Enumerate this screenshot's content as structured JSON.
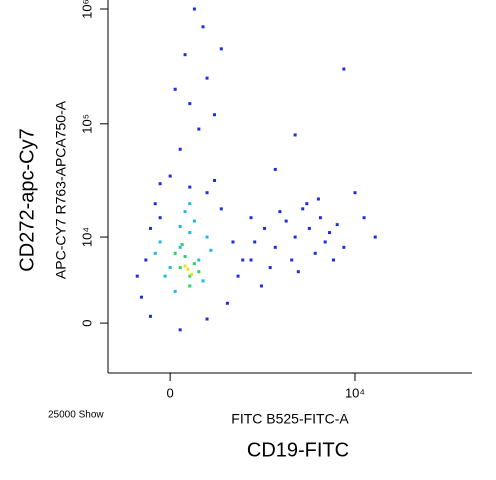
{
  "chart_data": {
    "type": "scatter",
    "sample_note": "25000 Show",
    "xlabel": "FITC B525-FITC-A",
    "ylabel": "APC-CY7 R763-APCA750-A",
    "xtitle": "CD19-FITC",
    "ytitle": "CD272-apc-Cy7",
    "xscale": "asinh",
    "xcofactor": 495,
    "yscale": "asinh",
    "ycofactor": 3680,
    "xlim": [
      -787,
      100000
    ],
    "ylim": [
      -3780,
      1000000
    ],
    "xticks": [
      0,
      {
        "value": 10000,
        "label": "10⁴"
      }
    ],
    "yticks": [
      0,
      {
        "value": 10000,
        "label": "10⁴"
      },
      {
        "value": 100000,
        "label": "10⁵"
      },
      {
        "value": 1000000,
        "label": "10⁶"
      }
    ],
    "series": [
      {
        "color": "#1c2ee0",
        "x": [
          -300,
          -250,
          -200,
          -150,
          -100,
          0,
          200,
          400,
          600,
          800,
          900,
          700,
          400,
          100,
          -200,
          -350,
          1200,
          1500,
          -100,
          500,
          100,
          300,
          200,
          400,
          150,
          350,
          250,
          500,
          50,
          600,
          1000,
          1300,
          1600,
          2000,
          2500,
          3000,
          3500,
          4000,
          4500,
          5000,
          5500,
          6000,
          7000,
          8000,
          1800,
          2800,
          3800,
          2200,
          4800,
          6500,
          1200,
          3200,
          10000,
          15000,
          3000,
          8000,
          12000,
          2000
        ],
        "y": [
          2000,
          6000,
          12000,
          20000,
          30000,
          35000,
          28000,
          25000,
          18000,
          9000,
          4000,
          1500,
          300,
          -500,
          500,
          4000,
          6000,
          3000,
          15000,
          32000,
          60000,
          90000,
          150000,
          250000,
          400000,
          700000,
          1000000,
          120000,
          200000,
          450000,
          6000,
          9000,
          12000,
          8000,
          14000,
          10000,
          18000,
          12000,
          7000,
          15000,
          9000,
          11000,
          13000,
          8000,
          5000,
          6000,
          20000,
          17000,
          22000,
          6000,
          15000,
          4500,
          25000,
          10000,
          80000,
          300000,
          15000,
          40000
        ]
      },
      {
        "color": "#20b8e8",
        "x": [
          0,
          100,
          200,
          300,
          -100,
          -50,
          250,
          150,
          400,
          50,
          350,
          -150,
          200,
          450,
          100
        ],
        "y": [
          5000,
          8000,
          11000,
          6000,
          9000,
          4000,
          14000,
          17000,
          10000,
          2500,
          3500,
          7000,
          20000,
          7500,
          12500
        ]
      },
      {
        "color": "#30d060",
        "x": [
          100,
          200,
          150,
          250,
          50,
          300,
          200,
          120
        ],
        "y": [
          5000,
          4000,
          6500,
          5500,
          7000,
          4500,
          3000,
          8500
        ]
      },
      {
        "color": "#e8e020",
        "x": [
          180,
          150,
          220
        ],
        "y": [
          4800,
          5200,
          4200
        ]
      }
    ]
  }
}
